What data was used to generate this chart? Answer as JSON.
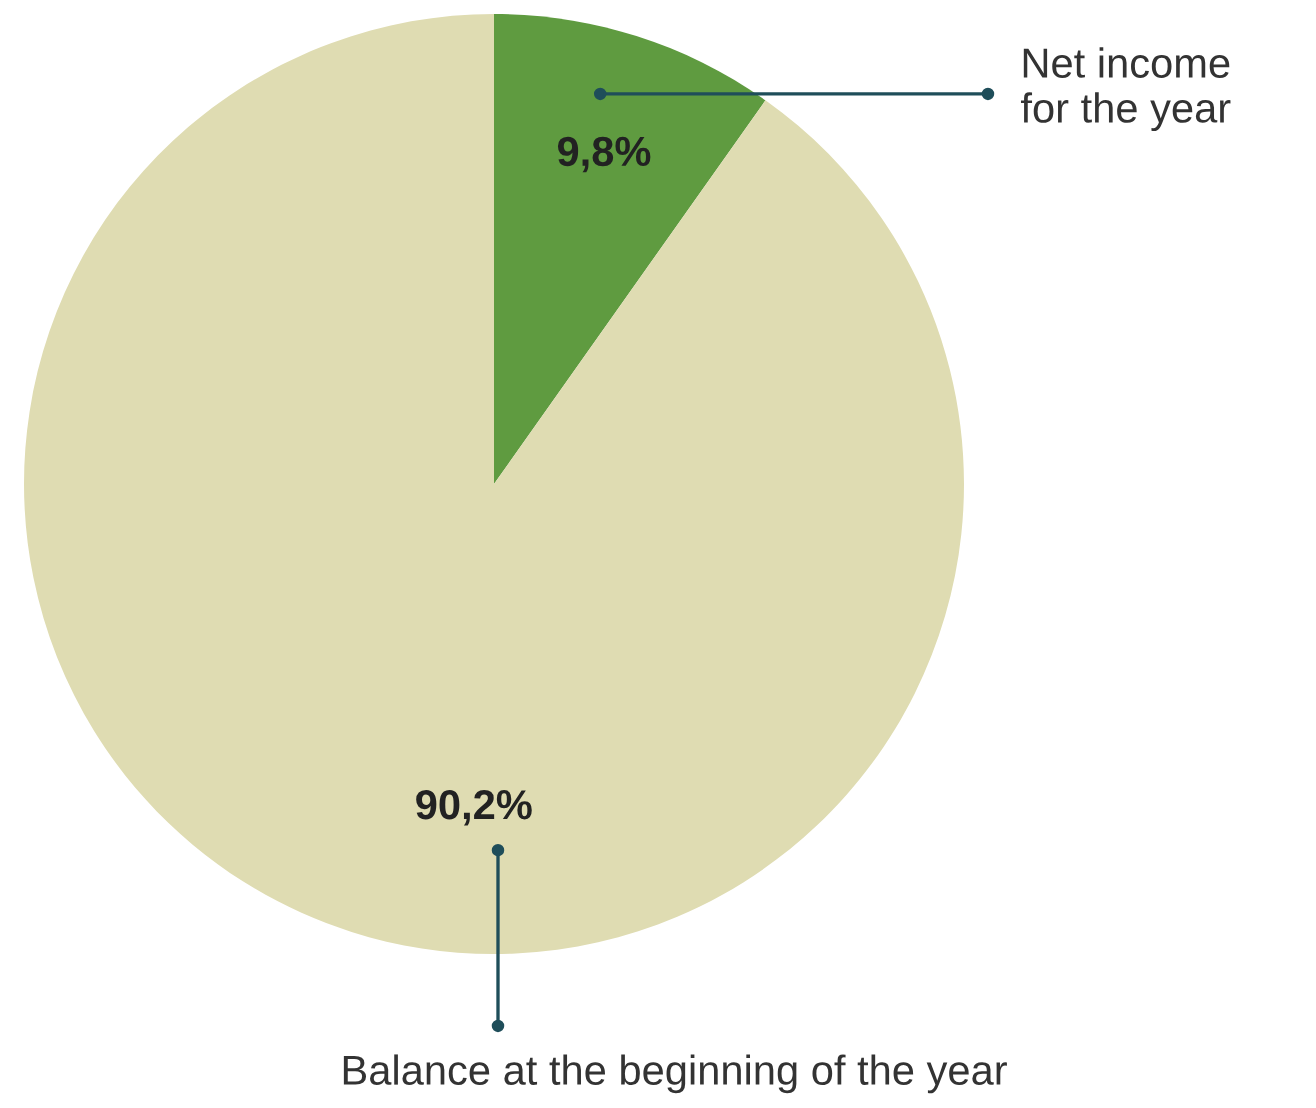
{
  "chart_data": {
    "type": "pie",
    "categories": [
      "Net income\nfor the year",
      "Balance at the beginning of the year"
    ],
    "values": [
      9.8,
      90.2
    ],
    "colors": [
      "#5f9b40",
      "#dfdcb2"
    ],
    "value_labels": [
      "9,8%",
      "90,2%"
    ],
    "legend": false
  }
}
